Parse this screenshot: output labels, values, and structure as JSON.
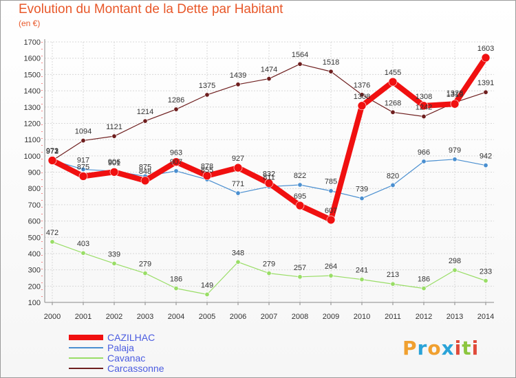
{
  "header": {
    "title": "Evolution du Montant de la Dette par Habitant",
    "subtitle": "(en €)"
  },
  "logo": {
    "letters": [
      "P",
      "r",
      "o",
      "x",
      "i",
      "t",
      "i"
    ],
    "colors": [
      "#f0a030",
      "#2aa3d8",
      "#f0a030",
      "#2aa3d8",
      "#e04a3a",
      "#8cc63f",
      "#e04a3a"
    ]
  },
  "chart_data": {
    "type": "line",
    "x": [
      "2000",
      "2001",
      "2002",
      "2003",
      "2004",
      "2005",
      "2006",
      "2007",
      "2008",
      "2009",
      "2010",
      "2011",
      "2012",
      "2013",
      "2014"
    ],
    "ylim": [
      100,
      1700
    ],
    "yticks": [
      100,
      200,
      300,
      400,
      500,
      600,
      700,
      800,
      900,
      1000,
      1100,
      1200,
      1300,
      1400,
      1500,
      1600,
      1700
    ],
    "grid": true,
    "legend_position": "bottom-left",
    "series": [
      {
        "name": "Carcassonne",
        "color": "#6e1e1e",
        "width": 1.2,
        "values": [
          971,
          1094,
          1121,
          1214,
          1286,
          1375,
          1439,
          1474,
          1564,
          1518,
          1376,
          1268,
          1242,
          1328,
          1391
        ],
        "labels": [
          "971",
          "1094",
          "1121",
          "1214",
          "1286",
          "1375",
          "1439",
          "1474",
          "1564",
          "1518",
          "1376",
          "1268",
          "1242",
          "1328",
          "1391"
        ]
      },
      {
        "name": "Cavanac",
        "color": "#99dd66",
        "width": 1.2,
        "values": [
          472,
          403,
          339,
          279,
          186,
          149,
          348,
          279,
          257,
          264,
          241,
          213,
          186,
          298,
          233
        ],
        "labels": [
          "472",
          "403",
          "339",
          "279",
          "186",
          "149",
          "348",
          "279",
          "257",
          "264",
          "241",
          "213",
          "186",
          "298",
          "233"
        ]
      },
      {
        "name": "Palaja",
        "color": "#4a8fd0",
        "width": 1.2,
        "values": [
          973,
          917,
          906,
          875,
          907,
          855,
          771,
          811,
          822,
          785,
          739,
          820,
          966,
          979,
          942
        ],
        "labels": [
          "973",
          "917",
          "906",
          "875",
          "907",
          "855",
          "771",
          "811",
          "822",
          "785",
          "739",
          "820",
          "966",
          "979",
          "942"
        ]
      },
      {
        "name": "CAZILHAC",
        "color": "#f01010",
        "width": 8,
        "values": [
          972,
          875,
          901,
          848,
          963,
          878,
          927,
          832,
          695,
          607,
          1308,
          1455,
          1308,
          1319,
          1603
        ],
        "labels": [
          "972",
          "875",
          "901",
          "848",
          "963",
          "878",
          "927",
          "832",
          "695",
          "607",
          "1308",
          "1455",
          "1308",
          "1319",
          "1603"
        ]
      }
    ],
    "legend_order": [
      "CAZILHAC",
      "Palaja",
      "Cavanac",
      "Carcassonne"
    ]
  }
}
